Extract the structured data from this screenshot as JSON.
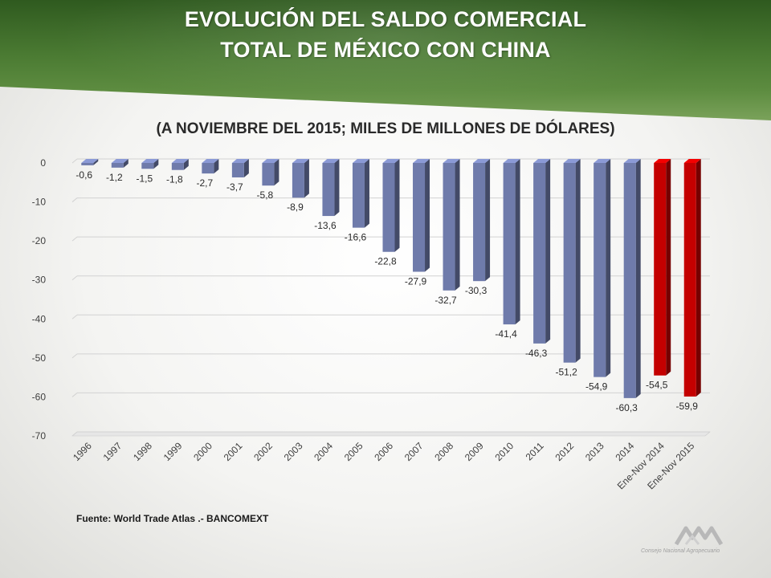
{
  "header": {
    "title_line1": "EVOLUCIÓN DEL SALDO COMERCIAL",
    "title_line2": "TOTAL DE  MÉXICO CON CHINA",
    "subtitle": "(A NOVIEMBRE DEL 2015;  MILES DE MILLONES DE DÓLARES)"
  },
  "source": "Fuente:  World Trade Atlas .- BANCOMEXT",
  "logo": {
    "name": "cna-logo-icon",
    "text": "Consejo Nacional Agropecuario"
  },
  "colors": {
    "bar_blue": "#6f7bab",
    "bar_red": "#c40000",
    "header_green": "#4a7a32"
  },
  "chart_data": {
    "type": "bar",
    "categories": [
      "1996",
      "1997",
      "1998",
      "1999",
      "2000",
      "2001",
      "2002",
      "2003",
      "2004",
      "2005",
      "2006",
      "2007",
      "2008",
      "2009",
      "2010",
      "2011",
      "2012",
      "2013",
      "2014",
      "Ene-Nov 2014",
      "Ene-Nov 2015"
    ],
    "values": [
      -0.6,
      -1.2,
      -1.5,
      -1.8,
      -2.7,
      -3.7,
      -5.8,
      -8.9,
      -13.6,
      -16.6,
      -22.8,
      -27.9,
      -32.7,
      -30.3,
      -41.4,
      -46.3,
      -51.2,
      -54.9,
      -60.3,
      -54.5,
      -59.9
    ],
    "value_labels": [
      "-0,6",
      "-1,2",
      "-1,5",
      "-1,8",
      "-2,7",
      "-3,7",
      "-5,8",
      "-8,9",
      "-13,6",
      "-16,6",
      "-22,8",
      "-27,9",
      "-32,7",
      "-30,3",
      "-41,4",
      "-46,3",
      "-51,2",
      "-54,9",
      "-60,3",
      "-54,5",
      "-59,9"
    ],
    "highlight": [
      "Ene-Nov 2014",
      "Ene-Nov 2015"
    ],
    "yticks": [
      0,
      -10,
      -20,
      -30,
      -40,
      -50,
      -60,
      -70
    ],
    "ylim": [
      -70,
      0
    ],
    "grid": true,
    "style": "3d"
  }
}
